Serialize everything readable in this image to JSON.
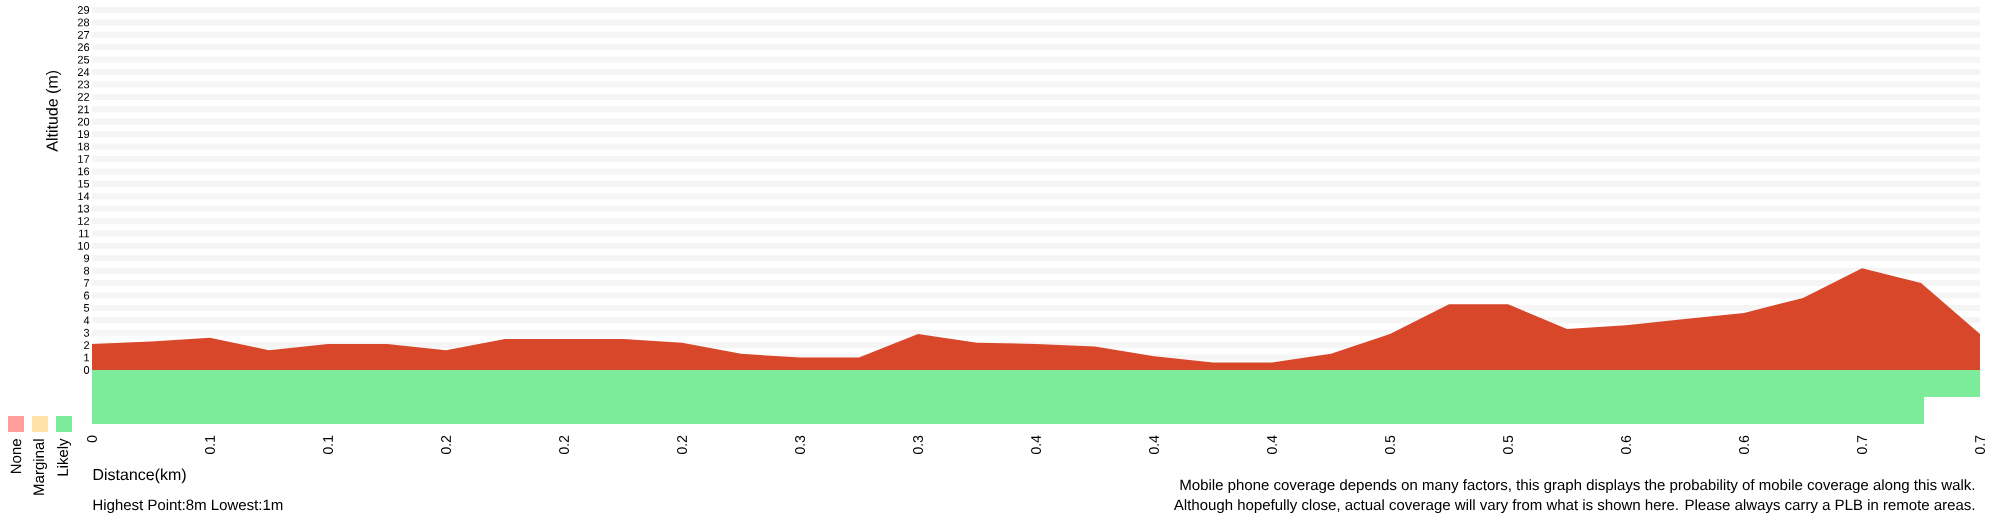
{
  "chart_data": [
    {
      "type": "area",
      "xlabel": "Distance(km)",
      "ylabel": "Altitude (m)",
      "color": "#d9472a",
      "grid": "y",
      "categories": [
        "0",
        null,
        "0.1",
        null,
        "0.1",
        null,
        "0.2",
        null,
        "0.2",
        null,
        "0.2",
        null,
        "0.3",
        null,
        "0.3",
        null,
        "0.4",
        null,
        "0.4",
        null,
        "0.4",
        null,
        "0.5",
        null,
        "0.5",
        null,
        "0.6",
        null,
        "0.6",
        null,
        "0.7",
        null,
        "0.7"
      ],
      "values": [
        2.1,
        2.3,
        2.6,
        1.6,
        2.1,
        2.1,
        1.6,
        2.5,
        2.5,
        2.5,
        2.2,
        1.3,
        1.0,
        1.0,
        2.9,
        2.2,
        2.1,
        1.9,
        1.1,
        0.6,
        0.6,
        1.3,
        2.9,
        5.3,
        5.3,
        3.3,
        3.6,
        4.1,
        4.6,
        5.8,
        8.2,
        7.0,
        2.9
      ],
      "ylim": [
        0,
        29
      ],
      "yticks": [
        0,
        1,
        2,
        3,
        4,
        5,
        6,
        7,
        8,
        9,
        10,
        11,
        12,
        13,
        14,
        15,
        16,
        17,
        18,
        19,
        20,
        21,
        22,
        23,
        24,
        25,
        26,
        27,
        28,
        29
      ],
      "annotations": [
        "Highest Point:8m Lowest:1m",
        "Mobile phone coverage depends on many factors, this graph displays the probability of mobile coverage along this walk.",
        "Although hopefully close, actual coverage will vary from what is shown here. Please always carry a PLB in remote areas."
      ]
    },
    {
      "type": "other",
      "annotations": [
        "None",
        "Marginal",
        "Likely"
      ]
    }
  ]
}
